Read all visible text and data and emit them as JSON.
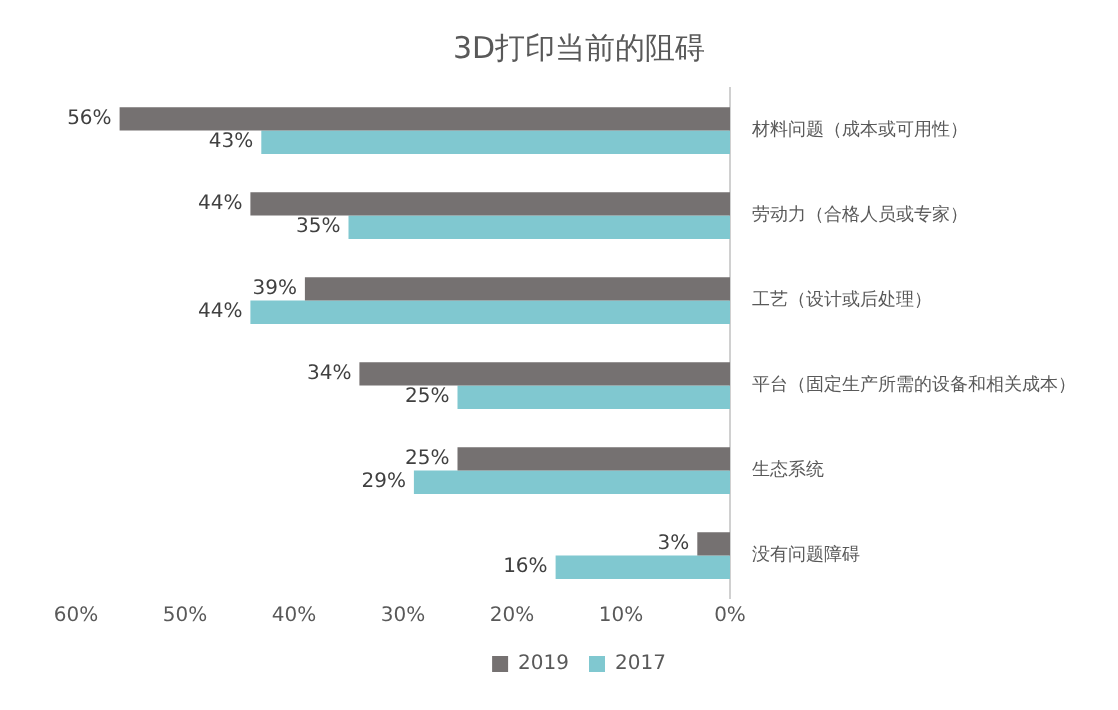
{
  "chart_data": {
    "type": "bar",
    "orientation": "horizontal",
    "title": "3D打印当前的阻碍",
    "categories": [
      "材料问题（成本或可用性）",
      "劳动力（合格人员或专家）",
      "工艺（设计或后处理）",
      "平台（固定生产所需的设备和相关成本）",
      "生态系统",
      "没有问题障碍"
    ],
    "series": [
      {
        "name": "2019",
        "color": "#757171",
        "values": [
          56,
          44,
          39,
          34,
          25,
          3
        ],
        "value_labels": [
          "56%",
          "44%",
          "39%",
          "34%",
          "25%",
          "3%"
        ]
      },
      {
        "name": "2017",
        "color": "#80c8d0",
        "values": [
          43,
          35,
          44,
          25,
          29,
          16
        ],
        "value_labels": [
          "43%",
          "35%",
          "44%",
          "25%",
          "29%",
          "16%"
        ]
      }
    ],
    "xlim": [
      60,
      0
    ],
    "xticks": [
      {
        "value": 0,
        "label": "0%"
      },
      {
        "value": 10,
        "label": "10%"
      },
      {
        "value": 20,
        "label": "20%"
      },
      {
        "value": 30,
        "label": "30%"
      },
      {
        "value": 40,
        "label": "40%"
      },
      {
        "value": 50,
        "label": "50%"
      },
      {
        "value": 60,
        "label": "60%"
      }
    ],
    "grid": false,
    "legend": "bottom"
  }
}
